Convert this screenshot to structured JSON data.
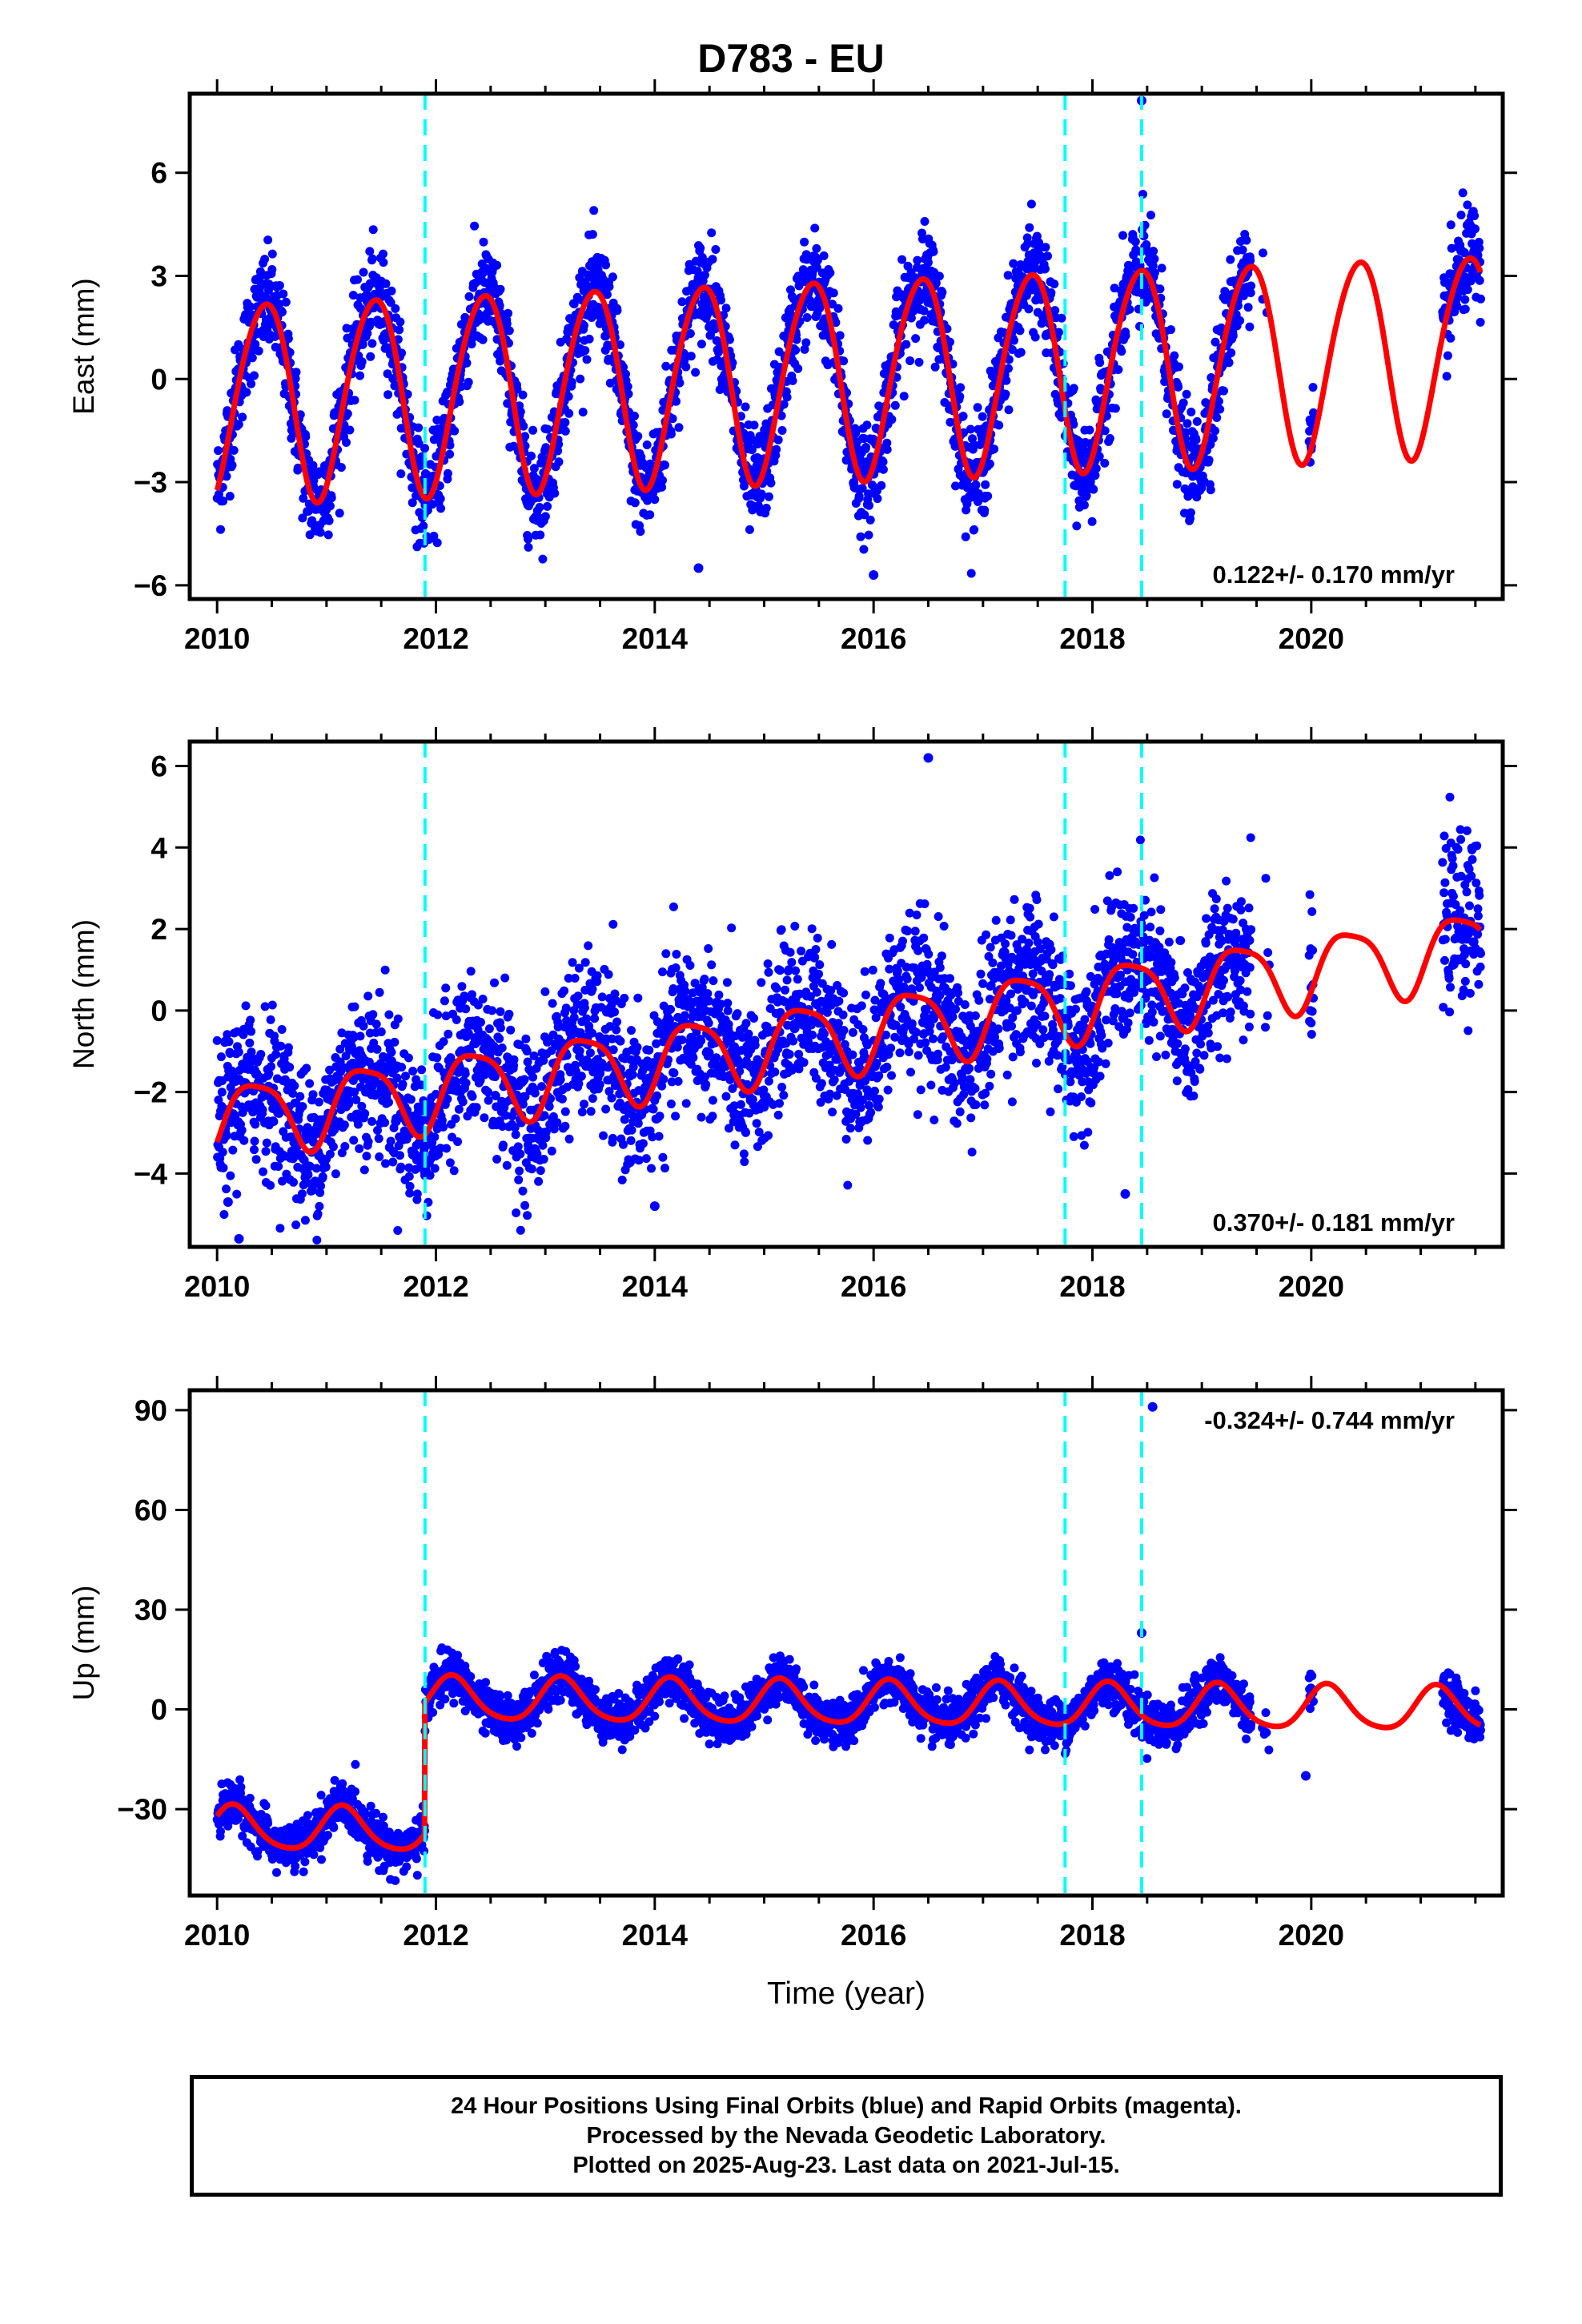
{
  "title": "D783 - EU",
  "colors": {
    "data_points": "#0000ff",
    "model_fit": "#ff0000",
    "event_lines": "#00ffff",
    "frame": "#000000"
  },
  "chart_data": [
    {
      "type": "scatter",
      "component": "East",
      "title": "D783 - EU",
      "xlabel": "",
      "ylabel": "East (mm)",
      "xlim": [
        2009.75,
        2021.75
      ],
      "ylim": [
        -6.4,
        8.3
      ],
      "xticks": [
        2010,
        2012,
        2014,
        2016,
        2018,
        2020
      ],
      "yticks": [
        -6,
        -3,
        0,
        3,
        6
      ],
      "ytick_labels": [
        "−6",
        "−3",
        "0",
        "3",
        "6"
      ],
      "event_lines": [
        2011.9,
        2017.75,
        2018.45
      ],
      "rate_label": "0.122+/- 0.170 mm/yr",
      "model": {
        "offset": 0.0,
        "slope": 0.122,
        "amp": 2.9,
        "phase": 0.18,
        "amp2": 0.25
      },
      "noise": 0.75,
      "outliers": [
        [
          2018.45,
          8.1
        ],
        [
          2016.0,
          -5.7
        ],
        [
          2014.4,
          -5.5
        ]
      ]
    },
    {
      "type": "scatter",
      "component": "North",
      "xlabel": "",
      "ylabel": "North (mm)",
      "xlim": [
        2009.75,
        2021.75
      ],
      "ylim": [
        -5.8,
        6.6
      ],
      "xticks": [
        2010,
        2012,
        2014,
        2016,
        2018,
        2020
      ],
      "yticks": [
        -4,
        -2,
        0,
        2,
        4,
        6
      ],
      "ytick_labels": [
        "−4",
        "−2",
        "0",
        "2",
        "4",
        "6"
      ],
      "event_lines": [
        2011.9,
        2017.75,
        2018.45
      ],
      "rate_label": "0.370+/- 0.181 mm/yr",
      "model": {
        "offset": -0.85,
        "slope": 0.37,
        "amp": 0.9,
        "phase": 0.1,
        "amp2": 0.2
      },
      "noise": 0.95,
      "outliers": [
        [
          2016.5,
          6.2
        ],
        [
          2010.2,
          -5.6
        ],
        [
          2010.1,
          -4.7
        ],
        [
          2018.3,
          -4.5
        ],
        [
          2014.0,
          -4.8
        ]
      ]
    },
    {
      "type": "scatter",
      "component": "Up",
      "xlabel": "Time (year)",
      "ylabel": "Up (mm)",
      "xlim": [
        2009.75,
        2021.75
      ],
      "ylim": [
        -56,
        96
      ],
      "xticks": [
        2010,
        2012,
        2014,
        2016,
        2018,
        2020
      ],
      "yticks": [
        -30,
        0,
        30,
        60,
        90
      ],
      "ytick_labels": [
        "−30",
        "0",
        "30",
        "60",
        "90"
      ],
      "event_lines": [
        2011.9,
        2017.75,
        2018.45
      ],
      "rate_label": "-0.324+/- 0.744 mm/yr",
      "model": {
        "offset": 2.0,
        "slope": -0.324,
        "amp": 6.5,
        "phase": -0.1,
        "amp2": 1.0,
        "step_at": 2011.9,
        "step_before": -37.5
      },
      "noise": 3.5,
      "outliers": [
        [
          2018.55,
          91
        ],
        [
          2018.45,
          23
        ],
        [
          2019.95,
          -20
        ]
      ]
    }
  ],
  "footer": {
    "line1": "24 Hour Positions Using Final Orbits (blue) and Rapid Orbits (magenta).",
    "line2": "Processed by the Nevada Geodetic Laboratory.",
    "line3": "Plotted on 2025-Aug-23. Last data on 2021-Jul-15."
  }
}
